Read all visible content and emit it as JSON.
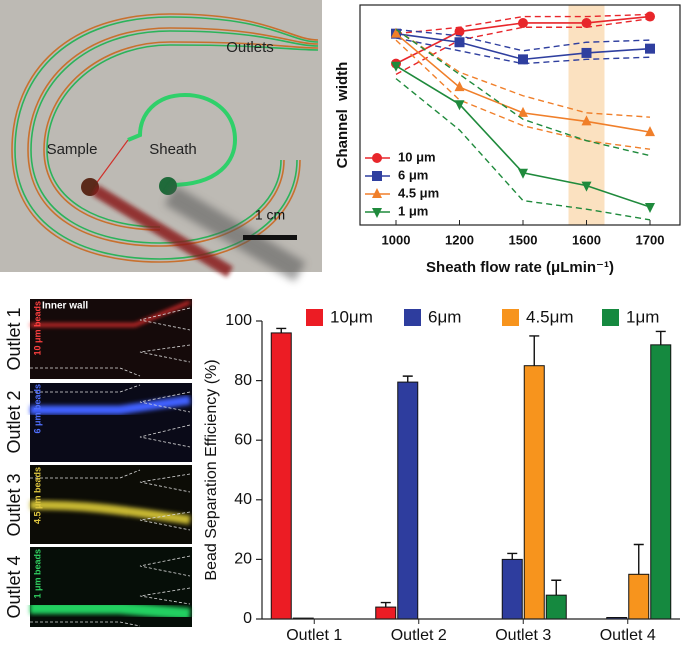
{
  "photo": {
    "labels": [
      "Outlets",
      "Sample",
      "Sheath"
    ],
    "scale_bar": "1 cm"
  },
  "panels": [
    {
      "label": "Outlet 1",
      "beads": "10 μm beads",
      "note": "Inner wall"
    },
    {
      "label": "Outlet 2",
      "beads": "6 μm beads"
    },
    {
      "label": "Outlet 3",
      "beads": "4.5 μm beads"
    },
    {
      "label": "Outlet 4",
      "beads": "1 μm beads"
    }
  ],
  "chart_data": [
    {
      "type": "line",
      "x_label": "Sheath flow rate (μLmin⁻¹)",
      "y_label": "Channel  width",
      "categories": [
        "1000",
        "1200",
        "1500",
        "1600",
        "1700"
      ],
      "ylim": [
        0,
        100
      ],
      "highlight_category": "1600",
      "highlight_color": "#fbe1c0",
      "legend": "lower left",
      "series": [
        {
          "name": "10 μm",
          "color": "#e8262b",
          "marker": "circle",
          "values": [
            74,
            89,
            93,
            93,
            96
          ],
          "upper": [
            88,
            91,
            96,
            96,
            97
          ],
          "lower": [
            69,
            85,
            91,
            91,
            95
          ]
        },
        {
          "name": "6 μm",
          "color": "#2f3f9f",
          "marker": "square",
          "values": [
            88,
            84,
            76,
            79,
            81
          ],
          "upper": [
            90,
            87,
            80,
            84,
            85
          ],
          "lower": [
            86,
            80,
            74,
            76,
            77
          ]
        },
        {
          "name": "4.5 μm",
          "color": "#f07f2a",
          "marker": "triangle-up",
          "values": [
            88,
            63,
            51,
            47,
            42
          ],
          "upper": [
            90,
            70,
            59,
            51,
            49
          ],
          "lower": [
            85,
            57,
            45,
            38,
            34
          ]
        },
        {
          "name": "1 μm",
          "color": "#1f8a3c",
          "marker": "triangle-down",
          "values": [
            73,
            55,
            23,
            17,
            7
          ],
          "upper": [
            90,
            69,
            48,
            38,
            31
          ],
          "lower": [
            67,
            43,
            10,
            6,
            1
          ]
        }
      ]
    },
    {
      "type": "bar",
      "y_label": "Bead Separation Efficiency (%)",
      "categories": [
        "Outlet 1",
        "Outlet 2",
        "Outlet 3",
        "Outlet 4"
      ],
      "ylim": [
        0,
        100
      ],
      "yticks": [
        0,
        20,
        40,
        60,
        80,
        100
      ],
      "legend": "top",
      "series": [
        {
          "name": "10μm",
          "color": "#ec1c24",
          "values": [
            96,
            4,
            0,
            0
          ],
          "errors": [
            1.5,
            1.5,
            0,
            0
          ]
        },
        {
          "name": "6μm",
          "color": "#2e3d9e",
          "values": [
            0.3,
            79.5,
            20,
            0.5
          ],
          "errors": [
            0,
            2,
            2,
            0
          ]
        },
        {
          "name": "4.5μm",
          "color": "#f7941d",
          "values": [
            0,
            0,
            85,
            15
          ],
          "errors": [
            0,
            0,
            10,
            10
          ]
        },
        {
          "name": "1μm",
          "color": "#15893f",
          "values": [
            0,
            0,
            8,
            92
          ],
          "errors": [
            0,
            0,
            5,
            4.5
          ]
        }
      ]
    }
  ]
}
